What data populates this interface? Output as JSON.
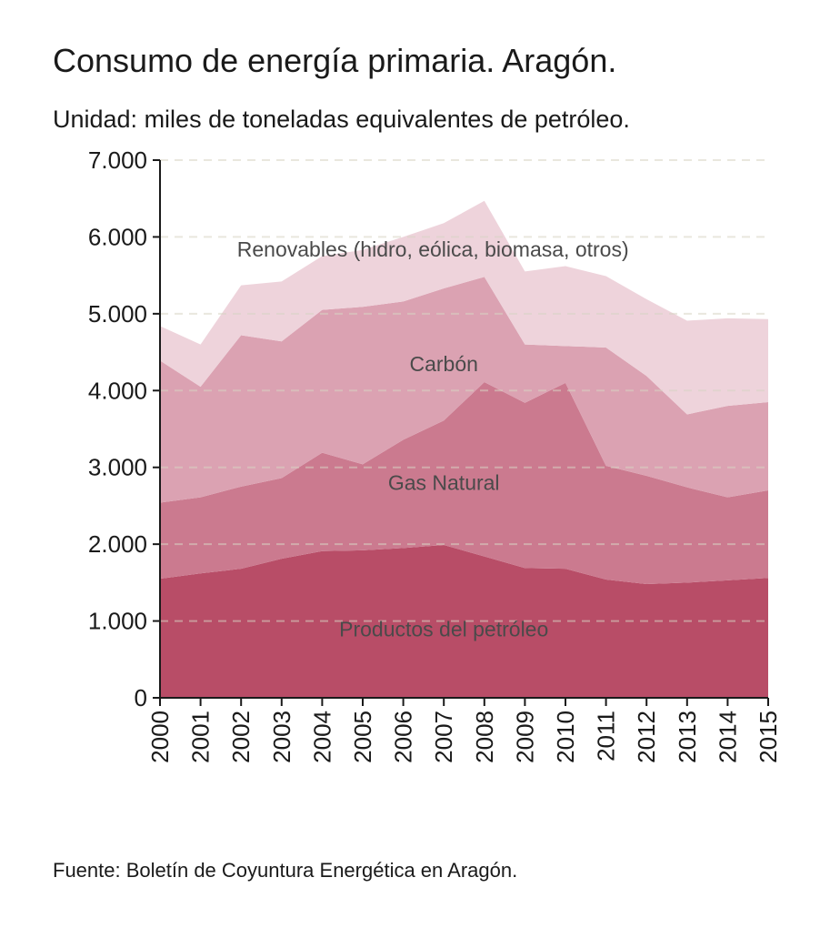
{
  "title": "Consumo de energía primaria. Aragón.",
  "subtitle": "Unidad: miles de toneladas equivalentes de petróleo.",
  "source": "Fuente: Boletín de Coyuntura Energética en Aragón.",
  "chart_data": {
    "type": "area",
    "stacked": true,
    "x": [
      "2000",
      "2001",
      "2002",
      "2003",
      "2004",
      "2005",
      "2006",
      "2007",
      "2008",
      "2009",
      "2010",
      "2011",
      "2012",
      "2013",
      "2014",
      "2015"
    ],
    "ylim": [
      0,
      7000
    ],
    "yticks": [
      0,
      1000,
      2000,
      3000,
      4000,
      5000,
      6000,
      7000
    ],
    "ytick_labels": [
      "0",
      "1.000",
      "2.000",
      "3.000",
      "4.000",
      "5.000",
      "6.000",
      "7.000"
    ],
    "grid": "horizontal dashed",
    "series": [
      {
        "name": "Productos del petróleo",
        "color": "#b84d67",
        "values": [
          1550,
          1620,
          1680,
          1810,
          1910,
          1920,
          1950,
          1990,
          1840,
          1690,
          1680,
          1540,
          1480,
          1500,
          1530,
          1560
        ]
      },
      {
        "name": "Gas Natural",
        "color": "#cb7a8f",
        "values": [
          990,
          990,
          1070,
          1050,
          1280,
          1120,
          1410,
          1620,
          2270,
          2150,
          2420,
          1480,
          1410,
          1240,
          1080,
          1140
        ]
      },
      {
        "name": "Carbón",
        "color": "#dba2b2",
        "values": [
          1850,
          1440,
          1970,
          1780,
          1860,
          2050,
          1800,
          1720,
          1370,
          760,
          480,
          1540,
          1300,
          950,
          1190,
          1150
        ]
      },
      {
        "name": "Renovables (hidro, eólica, biomasa, otros)",
        "color": "#eed3db",
        "values": [
          450,
          550,
          650,
          780,
          700,
          740,
          840,
          850,
          990,
          950,
          1040,
          930,
          1000,
          1220,
          1140,
          1080
        ]
      }
    ]
  }
}
